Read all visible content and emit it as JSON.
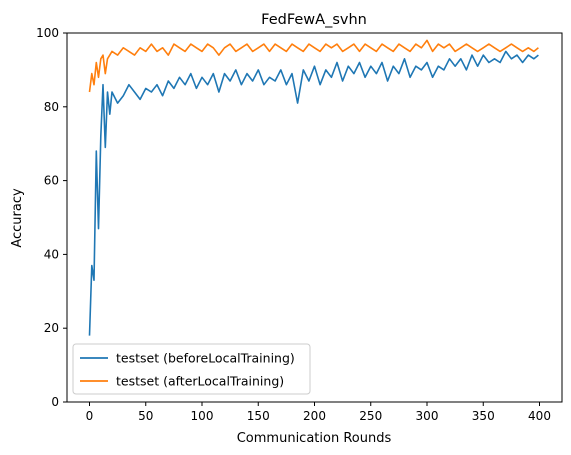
{
  "chart_data": {
    "type": "line",
    "title": "FedFewA_svhn",
    "xlabel": "Communication Rounds",
    "ylabel": "Accuracy",
    "xlim": [
      -20,
      420
    ],
    "ylim": [
      0,
      100
    ],
    "xticks": [
      0,
      50,
      100,
      150,
      200,
      250,
      300,
      350,
      400
    ],
    "yticks": [
      0,
      20,
      40,
      60,
      80,
      100
    ],
    "grid": false,
    "legend_position": "lower-left",
    "series": [
      {
        "name": "testset (beforeLocalTraining)",
        "color": "#1f77b4",
        "x": [
          0,
          2,
          4,
          6,
          8,
          10,
          12,
          14,
          16,
          18,
          20,
          25,
          30,
          35,
          40,
          45,
          50,
          55,
          60,
          65,
          70,
          75,
          80,
          85,
          90,
          95,
          100,
          105,
          110,
          115,
          120,
          125,
          130,
          135,
          140,
          145,
          150,
          155,
          160,
          165,
          170,
          175,
          180,
          185,
          190,
          195,
          200,
          205,
          210,
          215,
          220,
          225,
          230,
          235,
          240,
          245,
          250,
          255,
          260,
          265,
          270,
          275,
          280,
          285,
          290,
          295,
          300,
          305,
          310,
          315,
          320,
          325,
          330,
          335,
          340,
          345,
          350,
          355,
          360,
          365,
          370,
          375,
          380,
          385,
          390,
          395,
          399
        ],
        "y": [
          18,
          37,
          33,
          68,
          47,
          72,
          86,
          69,
          84,
          78,
          84,
          81,
          83,
          86,
          84,
          82,
          85,
          84,
          86,
          83,
          87,
          85,
          88,
          86,
          89,
          85,
          88,
          86,
          89,
          84,
          89,
          87,
          90,
          86,
          89,
          87,
          90,
          86,
          88,
          87,
          90,
          86,
          89,
          81,
          90,
          87,
          91,
          86,
          90,
          88,
          92,
          87,
          91,
          89,
          92,
          88,
          91,
          89,
          92,
          87,
          91,
          89,
          93,
          88,
          91,
          90,
          92,
          88,
          91,
          90,
          93,
          91,
          93,
          90,
          94,
          91,
          94,
          92,
          93,
          92,
          95,
          93,
          94,
          92,
          94,
          93,
          94
        ]
      },
      {
        "name": "testset (afterLocalTraining)",
        "color": "#ff7f0e",
        "x": [
          0,
          2,
          4,
          6,
          8,
          10,
          12,
          14,
          16,
          18,
          20,
          25,
          30,
          35,
          40,
          45,
          50,
          55,
          60,
          65,
          70,
          75,
          80,
          85,
          90,
          95,
          100,
          105,
          110,
          115,
          120,
          125,
          130,
          135,
          140,
          145,
          150,
          155,
          160,
          165,
          170,
          175,
          180,
          185,
          190,
          195,
          200,
          205,
          210,
          215,
          220,
          225,
          230,
          235,
          240,
          245,
          250,
          255,
          260,
          265,
          270,
          275,
          280,
          285,
          290,
          295,
          300,
          305,
          310,
          315,
          320,
          325,
          330,
          335,
          340,
          345,
          350,
          355,
          360,
          365,
          370,
          375,
          380,
          385,
          390,
          395,
          399
        ],
        "y": [
          84,
          89,
          86,
          92,
          88,
          93,
          94,
          89,
          93,
          94,
          95,
          94,
          96,
          95,
          94,
          96,
          95,
          97,
          95,
          96,
          94,
          97,
          96,
          95,
          97,
          96,
          95,
          97,
          96,
          94,
          96,
          97,
          95,
          96,
          97,
          95,
          96,
          97,
          95,
          97,
          96,
          95,
          97,
          96,
          95,
          97,
          96,
          95,
          97,
          96,
          97,
          95,
          96,
          97,
          95,
          97,
          96,
          95,
          97,
          96,
          95,
          97,
          96,
          95,
          97,
          96,
          98,
          95,
          97,
          96,
          97,
          95,
          96,
          97,
          96,
          95,
          96,
          97,
          96,
          95,
          96,
          97,
          96,
          95,
          96,
          95,
          96
        ]
      }
    ]
  }
}
